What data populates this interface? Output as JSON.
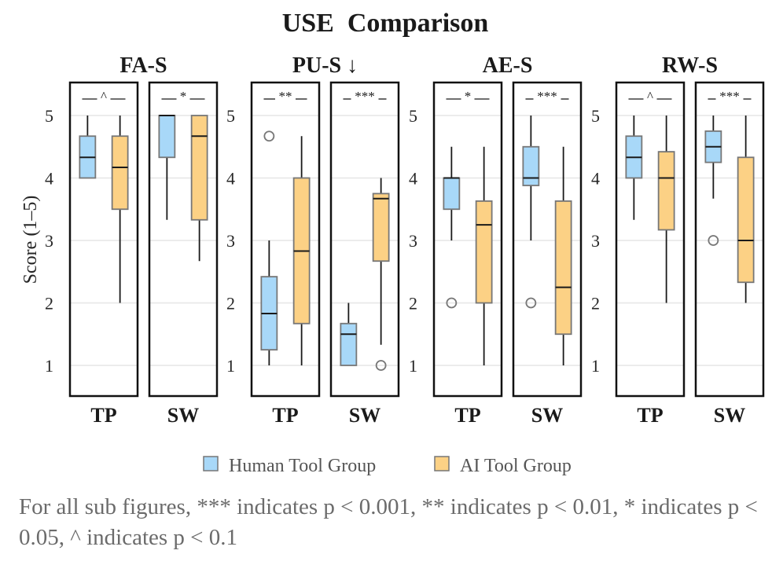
{
  "chart_data": {
    "type": "boxplot",
    "title": "USE  Comparison",
    "ylabel": "Score (1–5)",
    "ylim": [
      0.5,
      5.5
    ],
    "yticks": [
      1,
      2,
      3,
      4,
      5
    ],
    "legend": {
      "position": "bottom-center",
      "entries": [
        {
          "name": "Human Tool Group",
          "color": "#a8d8f8"
        },
        {
          "name": "AI Tool Group",
          "color": "#fcd185"
        }
      ]
    },
    "colors": {
      "human": "#a8d8f8",
      "ai": "#fcd185",
      "box_edge": "#777777",
      "median": "#1a1a1a",
      "frame": "#111111",
      "grid": "#e6e6e6"
    },
    "panels": [
      {
        "title": "FA-S",
        "subplots": [
          {
            "label": "TP",
            "significance": "^",
            "human": {
              "whislo": 4.0,
              "q1": 4.0,
              "med": 4.33,
              "q3": 4.67,
              "whishi": 5.0,
              "fliers": []
            },
            "ai": {
              "whislo": 2.0,
              "q1": 3.5,
              "med": 4.17,
              "q3": 4.67,
              "whishi": 5.0,
              "fliers": []
            }
          },
          {
            "label": "SW",
            "significance": "*",
            "human": {
              "whislo": 3.33,
              "q1": 4.33,
              "med": 5.0,
              "q3": 5.0,
              "whishi": 5.0,
              "fliers": []
            },
            "ai": {
              "whislo": 2.67,
              "q1": 3.33,
              "med": 4.67,
              "q3": 5.0,
              "whishi": 5.0,
              "fliers": []
            }
          }
        ]
      },
      {
        "title": "PU-S ↓",
        "subplots": [
          {
            "label": "TP",
            "significance": "**",
            "human": {
              "whislo": 1.0,
              "q1": 1.25,
              "med": 1.83,
              "q3": 2.42,
              "whishi": 3.0,
              "fliers": [
                4.67
              ]
            },
            "ai": {
              "whislo": 1.0,
              "q1": 1.67,
              "med": 2.83,
              "q3": 4.0,
              "whishi": 4.67,
              "fliers": []
            }
          },
          {
            "label": "SW",
            "significance": "***",
            "human": {
              "whislo": 1.0,
              "q1": 1.0,
              "med": 1.5,
              "q3": 1.67,
              "whishi": 2.0,
              "fliers": []
            },
            "ai": {
              "whislo": 1.33,
              "q1": 2.67,
              "med": 3.67,
              "q3": 3.75,
              "whishi": 4.0,
              "fliers": [
                1.0
              ]
            }
          }
        ]
      },
      {
        "title": "AE-S",
        "subplots": [
          {
            "label": "TP",
            "significance": "*",
            "human": {
              "whislo": 3.0,
              "q1": 3.5,
              "med": 4.0,
              "q3": 4.0,
              "whishi": 4.5,
              "fliers": [
                2.0
              ]
            },
            "ai": {
              "whislo": 1.0,
              "q1": 2.0,
              "med": 3.25,
              "q3": 3.63,
              "whishi": 4.5,
              "fliers": []
            }
          },
          {
            "label": "SW",
            "significance": "***",
            "human": {
              "whislo": 3.0,
              "q1": 3.88,
              "med": 4.0,
              "q3": 4.5,
              "whishi": 5.0,
              "fliers": [
                2.0
              ]
            },
            "ai": {
              "whislo": 1.0,
              "q1": 1.5,
              "med": 2.25,
              "q3": 3.63,
              "whishi": 4.5,
              "fliers": []
            }
          }
        ]
      },
      {
        "title": "RW-S",
        "subplots": [
          {
            "label": "TP",
            "significance": "^",
            "human": {
              "whislo": 3.33,
              "q1": 4.0,
              "med": 4.33,
              "q3": 4.67,
              "whishi": 5.0,
              "fliers": []
            },
            "ai": {
              "whislo": 2.0,
              "q1": 3.17,
              "med": 4.0,
              "q3": 4.42,
              "whishi": 5.0,
              "fliers": []
            }
          },
          {
            "label": "SW",
            "significance": "***",
            "human": {
              "whislo": 3.67,
              "q1": 4.25,
              "med": 4.5,
              "q3": 4.75,
              "whishi": 5.0,
              "fliers": [
                3.0
              ]
            },
            "ai": {
              "whislo": 2.0,
              "q1": 2.33,
              "med": 3.0,
              "q3": 4.33,
              "whishi": 5.0,
              "fliers": []
            }
          }
        ]
      }
    ]
  },
  "footnote": "For all sub figures, *** indicates p < 0.001, ** indicates p < 0.01, * indicates p < 0.05, ^ indicates p < 0.1"
}
